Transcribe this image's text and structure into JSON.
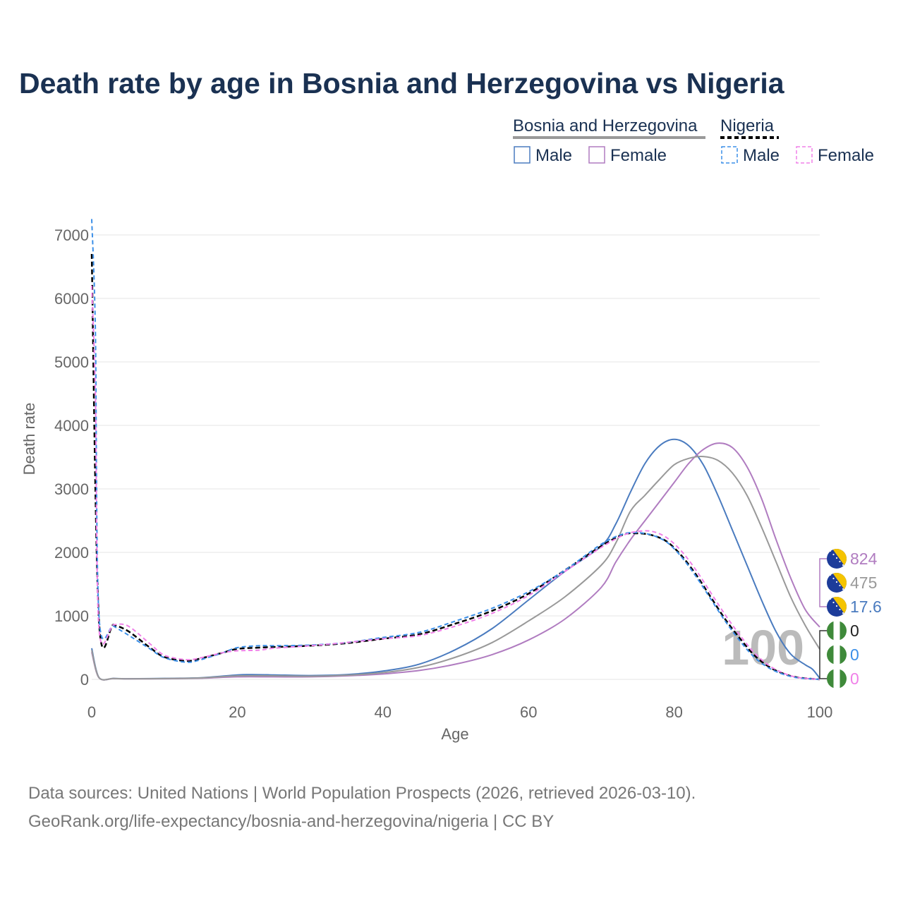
{
  "title": "Death rate by age in Bosnia and Herzegovina vs Nigeria",
  "legend": {
    "groups": [
      {
        "name": "Bosnia and Herzegovina",
        "underline_color": "#999999",
        "underline_style": "solid",
        "items": [
          {
            "label": "Male",
            "color": "#4a7bbf",
            "style": "solid"
          },
          {
            "label": "Female",
            "color": "#b07cc0",
            "style": "solid"
          }
        ]
      },
      {
        "name": "Nigeria",
        "underline_color": "#000000",
        "underline_style": "dashed",
        "items": [
          {
            "label": "Male",
            "color": "#3b8fe8",
            "style": "dashed"
          },
          {
            "label": "Female",
            "color": "#f080e8",
            "style": "dashed"
          }
        ]
      }
    ]
  },
  "chart_data": {
    "type": "line",
    "title": "Death rate by age in Bosnia and Herzegovina vs Nigeria",
    "xlabel": "Age",
    "ylabel": "Death rate",
    "xlim": [
      0,
      100
    ],
    "ylim": [
      0,
      7000
    ],
    "xticks": [
      0,
      20,
      40,
      60,
      80,
      100
    ],
    "yticks": [
      0,
      1000,
      2000,
      3000,
      4000,
      5000,
      6000,
      7000
    ],
    "grid": true,
    "current_age": "100",
    "series": [
      {
        "name": "Bosnia and Herzegovina Male",
        "color": "#4a7bbf",
        "dash": false,
        "width": 2,
        "x": [
          0,
          1,
          3,
          5,
          10,
          15,
          20,
          22,
          25,
          30,
          35,
          40,
          45,
          50,
          55,
          60,
          65,
          70,
          72,
          74,
          76,
          78,
          80,
          82,
          84,
          86,
          88,
          90,
          92,
          94,
          96,
          98,
          99,
          100
        ],
        "y": [
          490,
          30,
          15,
          10,
          15,
          25,
          70,
          75,
          70,
          60,
          75,
          130,
          240,
          470,
          800,
          1250,
          1700,
          2100,
          2450,
          2950,
          3400,
          3680,
          3780,
          3680,
          3380,
          2900,
          2350,
          1800,
          1250,
          750,
          400,
          230,
          160,
          17.6
        ]
      },
      {
        "name": "Bosnia and Herzegovina Female",
        "color": "#b07cc0",
        "dash": false,
        "width": 2,
        "x": [
          0,
          1,
          3,
          5,
          10,
          15,
          20,
          25,
          30,
          35,
          40,
          45,
          50,
          55,
          60,
          65,
          70,
          72,
          74,
          76,
          78,
          80,
          82,
          84,
          86,
          88,
          90,
          92,
          94,
          96,
          98,
          100
        ],
        "y": [
          430,
          25,
          12,
          8,
          10,
          18,
          40,
          40,
          40,
          55,
          85,
          140,
          240,
          390,
          620,
          950,
          1450,
          1850,
          2200,
          2500,
          2800,
          3100,
          3400,
          3620,
          3720,
          3650,
          3350,
          2850,
          2200,
          1600,
          1100,
          824
        ]
      },
      {
        "name": "Bosnia and Herzegovina Total",
        "color": "#999999",
        "dash": false,
        "width": 2,
        "x": [
          0,
          1,
          3,
          5,
          10,
          15,
          20,
          25,
          30,
          35,
          40,
          45,
          50,
          55,
          60,
          65,
          70,
          72,
          74,
          76,
          78,
          80,
          82,
          84,
          86,
          88,
          90,
          92,
          94,
          96,
          98,
          100
        ],
        "y": [
          460,
          28,
          14,
          9,
          12,
          22,
          55,
          55,
          50,
          65,
          105,
          190,
          350,
          580,
          920,
          1300,
          1800,
          2150,
          2650,
          2900,
          3150,
          3380,
          3480,
          3510,
          3450,
          3250,
          2900,
          2400,
          1850,
          1300,
          850,
          475
        ]
      },
      {
        "name": "Nigeria Total",
        "color": "#000000",
        "dash": true,
        "width": 2.5,
        "x": [
          0,
          1,
          3,
          5,
          8,
          10,
          13,
          15,
          18,
          20,
          23,
          25,
          30,
          35,
          40,
          45,
          50,
          55,
          60,
          65,
          70,
          73,
          75,
          77,
          79,
          81,
          83,
          85,
          87,
          89,
          91,
          93,
          95,
          97,
          100
        ],
        "y": [
          6700,
          920,
          860,
          760,
          500,
          350,
          290,
          330,
          420,
          480,
          500,
          510,
          530,
          570,
          640,
          710,
          880,
          1080,
          1350,
          1720,
          2100,
          2280,
          2300,
          2270,
          2170,
          1950,
          1650,
          1300,
          950,
          650,
          380,
          200,
          90,
          30,
          0
        ]
      },
      {
        "name": "Nigeria Male",
        "color": "#3b8fe8",
        "dash": true,
        "width": 2,
        "x": [
          0,
          0.5,
          1,
          3,
          5,
          8,
          10,
          13,
          15,
          18,
          20,
          23,
          25,
          30,
          35,
          40,
          45,
          50,
          55,
          60,
          65,
          70,
          73,
          75,
          77,
          79,
          81,
          83,
          85,
          87,
          89,
          91,
          93,
          95,
          97,
          100
        ],
        "y": [
          7250,
          5500,
          1000,
          840,
          700,
          480,
          340,
          270,
          310,
          420,
          500,
          530,
          530,
          540,
          580,
          660,
          740,
          920,
          1120,
          1380,
          1720,
          2130,
          2290,
          2310,
          2270,
          2160,
          1930,
          1620,
          1270,
          920,
          610,
          350,
          180,
          80,
          25,
          0
        ]
      },
      {
        "name": "Nigeria Female",
        "color": "#f080e8",
        "dash": true,
        "width": 2,
        "x": [
          0,
          0.5,
          1,
          3,
          5,
          8,
          10,
          13,
          15,
          18,
          20,
          23,
          25,
          30,
          35,
          40,
          45,
          50,
          55,
          60,
          65,
          70,
          73,
          75,
          77,
          79,
          81,
          83,
          85,
          87,
          89,
          91,
          93,
          95,
          97,
          100
        ],
        "y": [
          6200,
          4500,
          800,
          860,
          840,
          560,
          380,
          310,
          340,
          420,
          450,
          460,
          490,
          530,
          580,
          640,
          690,
          840,
          1040,
          1320,
          1700,
          2080,
          2270,
          2330,
          2330,
          2230,
          2020,
          1720,
          1370,
          1020,
          700,
          420,
          220,
          100,
          30,
          0
        ]
      }
    ],
    "end_labels": [
      {
        "text": "824",
        "country": "bih",
        "color": "#b07cc0"
      },
      {
        "text": "475",
        "country": "bih",
        "color": "#999999"
      },
      {
        "text": "17.6",
        "country": "bih",
        "color": "#4a7bbf"
      },
      {
        "text": "0",
        "country": "ng",
        "color": "#222222"
      },
      {
        "text": "0",
        "country": "ng",
        "color": "#3b8fe8"
      },
      {
        "text": "0",
        "country": "ng",
        "color": "#f080e8"
      }
    ]
  },
  "footer": {
    "line1": "Data sources: United Nations | World Population Prospects (2026, retrieved 2026-03-10).",
    "line2": "GeoRank.org/life-expectancy/bosnia-and-herzegovina/nigeria | CC BY"
  }
}
